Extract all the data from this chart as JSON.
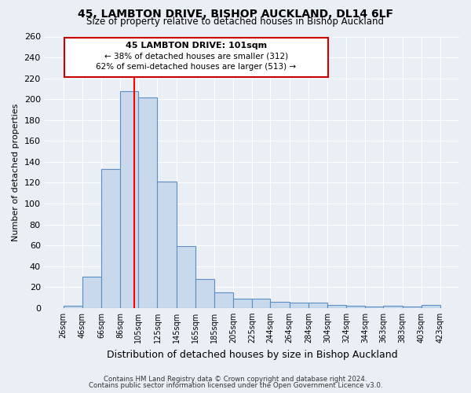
{
  "title": "45, LAMBTON DRIVE, BISHOP AUCKLAND, DL14 6LF",
  "subtitle": "Size of property relative to detached houses in Bishop Auckland",
  "xlabel": "Distribution of detached houses by size in Bishop Auckland",
  "ylabel": "Number of detached properties",
  "bar_color": "#c9d9ec",
  "bar_edge_color": "#5a8fc3",
  "red_line_x": 101,
  "bins": [
    26,
    46,
    66,
    86,
    105,
    125,
    145,
    165,
    185,
    205,
    225,
    244,
    264,
    284,
    304,
    324,
    344,
    363,
    383,
    403,
    423
  ],
  "bin_labels": [
    "26sqm",
    "46sqm",
    "66sqm",
    "86sqm",
    "105sqm",
    "125sqm",
    "145sqm",
    "165sqm",
    "185sqm",
    "205sqm",
    "225sqm",
    "244sqm",
    "264sqm",
    "284sqm",
    "304sqm",
    "324sqm",
    "344sqm",
    "363sqm",
    "383sqm",
    "403sqm",
    "423sqm"
  ],
  "counts": [
    2,
    30,
    133,
    208,
    202,
    121,
    59,
    28,
    15,
    9,
    9,
    6,
    5,
    5,
    3,
    2,
    1,
    2,
    1,
    3
  ],
  "ylim": [
    0,
    260
  ],
  "yticks": [
    0,
    20,
    40,
    60,
    80,
    100,
    120,
    140,
    160,
    180,
    200,
    220,
    240,
    260
  ],
  "annotation_title": "45 LAMBTON DRIVE: 101sqm",
  "annotation_line1": "← 38% of detached houses are smaller (312)",
  "annotation_line2": "62% of semi-detached houses are larger (513) →",
  "box_facecolor": "#ffffff",
  "box_edgecolor": "#cc0000",
  "footnote1": "Contains HM Land Registry data © Crown copyright and database right 2024.",
  "footnote2": "Contains public sector information licensed under the Open Government Licence v3.0.",
  "background_color": "#eaeff5"
}
